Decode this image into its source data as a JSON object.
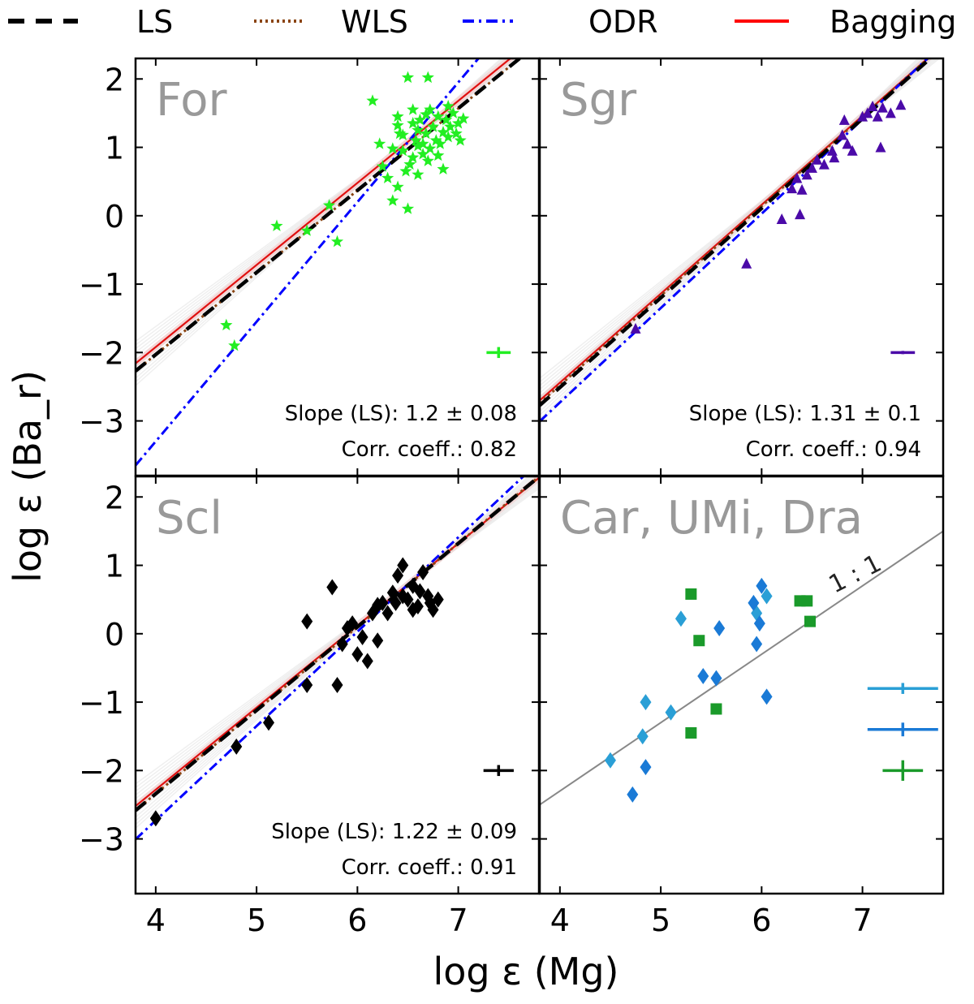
{
  "chart_data": {
    "type": "scatter",
    "xlabel": "log ε (Mg)",
    "ylabel": "log ε (Ba_r)",
    "xlim": [
      3.8,
      7.8
    ],
    "ylim": [
      -3.8,
      2.3
    ],
    "xticks": [
      "4",
      "5",
      "6",
      "7"
    ],
    "yticks": [
      "2",
      "1",
      "0",
      "−1",
      "−2",
      "−3"
    ],
    "legend": {
      "placement": "top",
      "entries": [
        {
          "label": "LS",
          "color": "#000000",
          "style": "dashed"
        },
        {
          "label": "WLS",
          "color": "#8b4513",
          "style": "dotted"
        },
        {
          "label": "ODR",
          "color": "#0000ff",
          "style": "dashdot"
        },
        {
          "label": "Bagging",
          "color": "#ff0000",
          "style": "solid"
        }
      ]
    },
    "panels": [
      {
        "name": "For",
        "marker": "star",
        "color": "#22ee22",
        "fits": {
          "ls": {
            "slope": 1.2,
            "intercept": -6.83
          },
          "wls": {
            "slope": 1.2,
            "intercept": -6.83
          },
          "odr": {
            "slope": 1.75,
            "intercept": -10.3
          },
          "bagging": {
            "slope": 1.2,
            "intercept": -6.72
          }
        },
        "slope_text": "Slope (LS): 1.2 ± 0.08",
        "corr_text": "Corr. coeff.: 0.82",
        "errorbar": {
          "x": 7.4,
          "y": -2.0,
          "dx": 0.12,
          "dy": 0.08
        },
        "points": [
          [
            4.7,
            -1.6
          ],
          [
            4.78,
            -1.9
          ],
          [
            5.2,
            -0.15
          ],
          [
            5.5,
            -0.22
          ],
          [
            5.72,
            0.15
          ],
          [
            5.8,
            -0.38
          ],
          [
            6.15,
            1.68
          ],
          [
            6.22,
            1.05
          ],
          [
            6.25,
            0.72
          ],
          [
            6.3,
            0.55
          ],
          [
            6.35,
            0.22
          ],
          [
            6.4,
            1.45
          ],
          [
            6.4,
            0.42
          ],
          [
            6.42,
            1.2
          ],
          [
            6.45,
            0.95
          ],
          [
            6.48,
            0.65
          ],
          [
            6.5,
            0.1
          ],
          [
            6.5,
            2.02
          ],
          [
            6.55,
            1.35
          ],
          [
            6.55,
            0.85
          ],
          [
            6.58,
            1.1
          ],
          [
            6.6,
            1.25
          ],
          [
            6.6,
            0.6
          ],
          [
            6.62,
            1.4
          ],
          [
            6.65,
            1.05
          ],
          [
            6.65,
            0.9
          ],
          [
            6.7,
            2.02
          ],
          [
            6.68,
            1.2
          ],
          [
            6.7,
            0.8
          ],
          [
            6.72,
            1.55
          ],
          [
            6.75,
            1.3
          ],
          [
            6.78,
            1.1
          ],
          [
            6.8,
            1.45
          ],
          [
            6.8,
            0.88
          ],
          [
            6.82,
            1.05
          ],
          [
            6.85,
            1.22
          ],
          [
            6.88,
            1.4
          ],
          [
            6.9,
            1.15
          ],
          [
            6.92,
            1.3
          ],
          [
            6.95,
            1.5
          ],
          [
            6.98,
            1.2
          ],
          [
            7.0,
            1.35
          ],
          [
            7.02,
            1.1
          ],
          [
            7.05,
            1.42
          ],
          [
            6.55,
            1.55
          ],
          [
            6.6,
            1.02
          ],
          [
            6.45,
            1.18
          ],
          [
            6.4,
            1.32
          ],
          [
            6.52,
            0.75
          ],
          [
            6.35,
            0.98
          ],
          [
            6.72,
            0.98
          ],
          [
            6.85,
            0.68
          ],
          [
            6.68,
            1.48
          ],
          [
            6.9,
            1.6
          ]
        ]
      },
      {
        "name": "Sgr",
        "marker": "triangle",
        "color": "#4b0aa8",
        "fits": {
          "ls": {
            "slope": 1.31,
            "intercept": -7.75
          },
          "wls": {
            "slope": 1.31,
            "intercept": -7.72
          },
          "odr": {
            "slope": 1.38,
            "intercept": -8.25
          },
          "bagging": {
            "slope": 1.3,
            "intercept": -7.64
          }
        },
        "slope_text": "Slope (LS): 1.31 ± 0.1",
        "corr_text": "Corr. coeff.: 0.94",
        "errorbar": {
          "x": 7.4,
          "y": -2.0,
          "dx": 0.12,
          "dy": 0.0
        },
        "points": [
          [
            4.75,
            -1.65
          ],
          [
            5.85,
            -0.7
          ],
          [
            6.2,
            -0.05
          ],
          [
            6.3,
            0.4
          ],
          [
            6.35,
            0.55
          ],
          [
            6.38,
            0.02
          ],
          [
            6.4,
            0.38
          ],
          [
            6.45,
            0.6
          ],
          [
            6.5,
            0.7
          ],
          [
            6.55,
            0.82
          ],
          [
            6.62,
            0.75
          ],
          [
            6.7,
            0.95
          ],
          [
            6.72,
            0.85
          ],
          [
            6.8,
            1.18
          ],
          [
            6.82,
            1.4
          ],
          [
            6.85,
            1.05
          ],
          [
            6.9,
            0.95
          ],
          [
            7.0,
            1.45
          ],
          [
            7.05,
            1.5
          ],
          [
            7.1,
            1.6
          ],
          [
            7.15,
            1.45
          ],
          [
            7.2,
            1.58
          ],
          [
            7.28,
            1.5
          ],
          [
            7.38,
            1.62
          ],
          [
            7.18,
            1.0
          ]
        ]
      },
      {
        "name": "Scl",
        "marker": "diamond",
        "color": "#000000",
        "fits": {
          "ls": {
            "slope": 1.22,
            "intercept": -7.22
          },
          "wls": {
            "slope": 1.22,
            "intercept": -7.22
          },
          "odr": {
            "slope": 1.38,
            "intercept": -8.25
          },
          "bagging": {
            "slope": 1.2,
            "intercept": -7.08
          }
        },
        "slope_text": "Slope (LS): 1.22 ± 0.09",
        "corr_text": "Corr. coeff.: 0.91",
        "errorbar": {
          "x": 7.4,
          "y": -2.0,
          "dx": 0.15,
          "dy": 0.08
        },
        "points": [
          [
            4.0,
            -2.7
          ],
          [
            4.8,
            -1.65
          ],
          [
            5.12,
            -1.3
          ],
          [
            5.5,
            -0.75
          ],
          [
            5.5,
            0.18
          ],
          [
            5.75,
            0.68
          ],
          [
            5.8,
            -0.75
          ],
          [
            5.85,
            -0.15
          ],
          [
            5.9,
            0.08
          ],
          [
            5.95,
            0.15
          ],
          [
            6.0,
            -0.3
          ],
          [
            6.05,
            -0.05
          ],
          [
            6.1,
            -0.4
          ],
          [
            6.15,
            0.3
          ],
          [
            6.2,
            -0.1
          ],
          [
            6.25,
            0.45
          ],
          [
            6.3,
            0.3
          ],
          [
            6.35,
            0.6
          ],
          [
            6.4,
            0.85
          ],
          [
            6.45,
            1.0
          ],
          [
            6.5,
            0.5
          ],
          [
            6.55,
            0.7
          ],
          [
            6.6,
            0.4
          ],
          [
            6.65,
            0.9
          ],
          [
            6.7,
            0.55
          ],
          [
            6.75,
            0.35
          ],
          [
            6.8,
            0.5
          ],
          [
            6.55,
            0.35
          ],
          [
            6.45,
            0.55
          ],
          [
            6.38,
            0.45
          ],
          [
            6.2,
            0.42
          ],
          [
            6.62,
            0.62
          ],
          [
            6.72,
            0.45
          ]
        ]
      },
      {
        "name": "Car, UMi, Dra",
        "annotation": "1 : 1",
        "identity_line": true,
        "series": [
          {
            "name": "Car",
            "marker": "diamond",
            "color": "#2a9fd6",
            "points": [
              [
                4.5,
                -1.85
              ],
              [
                4.82,
                -1.5
              ],
              [
                4.85,
                -1.0
              ],
              [
                5.1,
                -1.15
              ],
              [
                5.2,
                0.22
              ],
              [
                5.95,
                0.3
              ],
              [
                6.05,
                0.55
              ]
            ],
            "errorbar": {
              "x": 7.4,
              "y": -0.8,
              "dx": 0.35,
              "dy": 0.08
            }
          },
          {
            "name": "UMi",
            "marker": "diamond",
            "color": "#1a7ad6",
            "points": [
              [
                4.72,
                -2.35
              ],
              [
                4.85,
                -1.95
              ],
              [
                5.42,
                -0.62
              ],
              [
                5.55,
                -0.65
              ],
              [
                5.58,
                0.08
              ],
              [
                5.92,
                0.45
              ],
              [
                5.95,
                -0.15
              ],
              [
                5.98,
                0.15
              ],
              [
                6.0,
                0.7
              ],
              [
                6.05,
                -0.92
              ]
            ],
            "errorbar": {
              "x": 7.4,
              "y": -1.4,
              "dx": 0.35,
              "dy": 0.1
            }
          },
          {
            "name": "Dra",
            "marker": "square",
            "color": "#1a9a2a",
            "points": [
              [
                5.3,
                0.58
              ],
              [
                5.3,
                -1.45
              ],
              [
                5.38,
                -0.1
              ],
              [
                5.55,
                -1.1
              ],
              [
                6.38,
                0.48
              ],
              [
                6.45,
                0.48
              ],
              [
                6.48,
                0.18
              ]
            ],
            "errorbar": {
              "x": 7.4,
              "y": -2.0,
              "dx": 0.2,
              "dy": 0.15
            }
          }
        ]
      }
    ]
  }
}
